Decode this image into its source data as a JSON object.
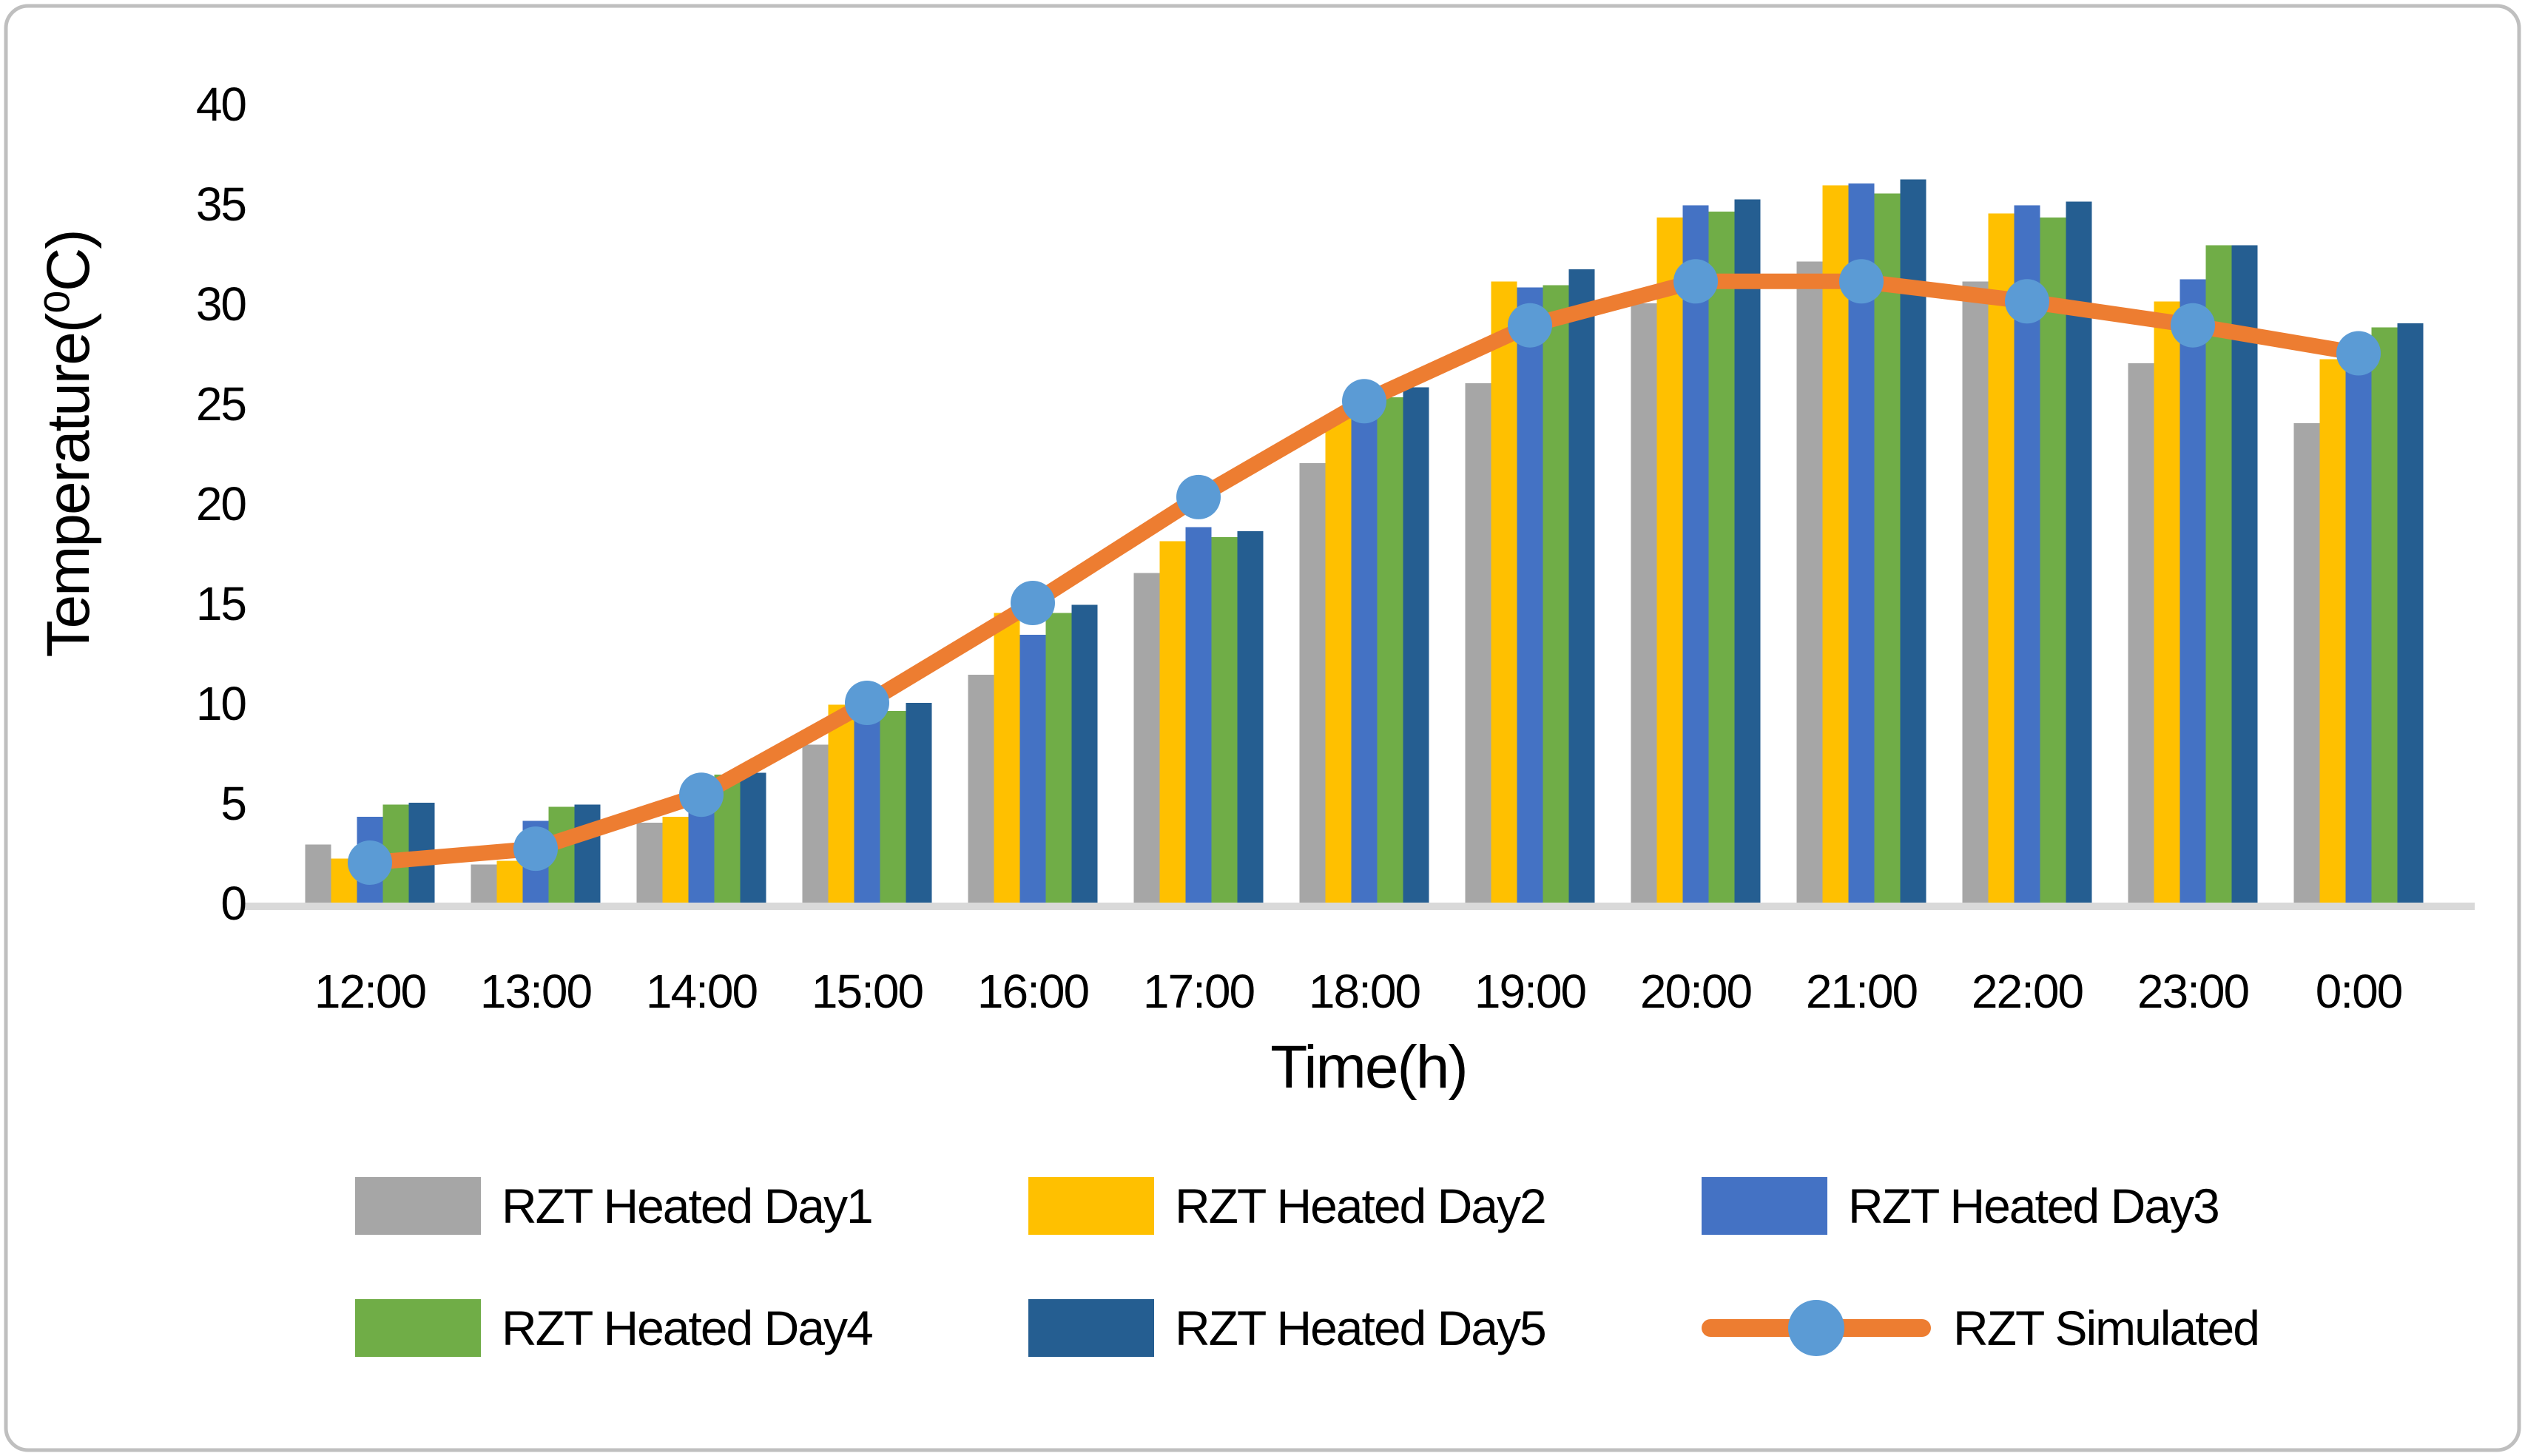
{
  "figure": {
    "border_color": "#bfbfbf",
    "background": "#ffffff"
  },
  "chart_data": {
    "type": "bar+line",
    "title": "",
    "xlabel": "Time(h)",
    "ylabel": "Temperature(⁰C)",
    "ylim": [
      0,
      40
    ],
    "yticks": [
      0,
      5,
      10,
      15,
      20,
      25,
      30,
      35,
      40
    ],
    "grid": "off",
    "legend_position": "bottom",
    "axis_line_color": "#d9d9d9",
    "categories": [
      "12:00",
      "13:00",
      "14:00",
      "15:00",
      "16:00",
      "17:00",
      "18:00",
      "19:00",
      "20:00",
      "21:00",
      "22:00",
      "23:00",
      "0:00"
    ],
    "series": [
      {
        "name": "RZT Heated Day1",
        "type": "bar",
        "color": "#a6a6a6",
        "values": [
          2.9,
          1.9,
          4.0,
          7.9,
          11.4,
          16.5,
          22.0,
          26.0,
          30.0,
          32.1,
          31.1,
          27.0,
          24.0
        ]
      },
      {
        "name": "RZT Heated Day2",
        "type": "bar",
        "color": "#ffc000",
        "values": [
          2.2,
          2.1,
          4.3,
          9.9,
          14.5,
          18.1,
          24.4,
          31.1,
          34.3,
          35.9,
          34.5,
          30.1,
          27.2
        ]
      },
      {
        "name": "RZT Heated Day3",
        "type": "bar",
        "color": "#4472c4",
        "values": [
          4.3,
          4.1,
          4.7,
          9.2,
          13.4,
          18.8,
          24.8,
          30.8,
          34.9,
          36.0,
          34.9,
          31.2,
          27.7
        ]
      },
      {
        "name": "RZT Heated Day4",
        "type": "bar",
        "color": "#70ad47",
        "values": [
          4.9,
          4.8,
          6.4,
          9.6,
          14.5,
          18.3,
          25.3,
          30.9,
          34.6,
          35.5,
          34.3,
          32.9,
          28.8
        ]
      },
      {
        "name": "RZT Heated Day5",
        "type": "bar",
        "color": "#255e91",
        "values": [
          5.0,
          4.9,
          6.5,
          10.0,
          14.9,
          18.6,
          25.8,
          31.7,
          35.2,
          36.2,
          35.1,
          32.9,
          29.0
        ]
      },
      {
        "name": "RZT Simulated",
        "type": "line",
        "color": "#ed7d31",
        "marker_color": "#5b9bd5",
        "values": [
          2.0,
          2.7,
          5.4,
          10.0,
          15.0,
          20.3,
          25.1,
          28.9,
          31.1,
          31.1,
          30.1,
          28.9,
          27.5
        ]
      }
    ]
  },
  "legend": {
    "items": [
      {
        "label": "RZT Heated Day1",
        "color": "#a6a6a6",
        "kind": "bar"
      },
      {
        "label": "RZT Heated Day2",
        "color": "#ffc000",
        "kind": "bar"
      },
      {
        "label": "RZT Heated Day3",
        "color": "#4472c4",
        "kind": "bar"
      },
      {
        "label": "RZT Heated Day4",
        "color": "#70ad47",
        "kind": "bar"
      },
      {
        "label": "RZT Heated Day5",
        "color": "#255e91",
        "kind": "bar"
      },
      {
        "label": "RZT Simulated",
        "color": "#ed7d31",
        "marker_color": "#5b9bd5",
        "kind": "line"
      }
    ]
  }
}
